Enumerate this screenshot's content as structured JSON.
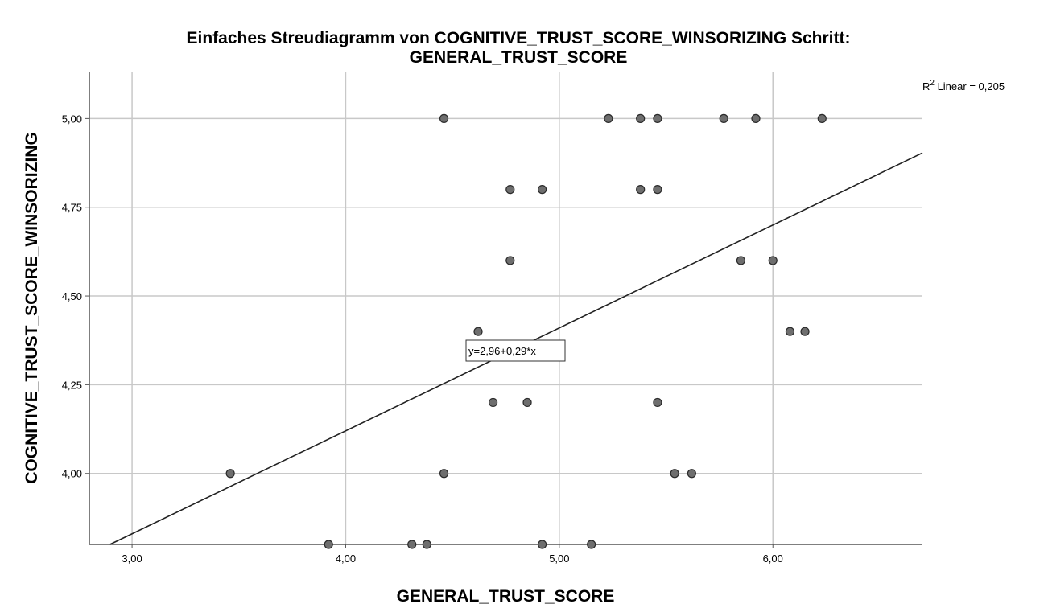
{
  "chart_data": {
    "type": "scatter",
    "title_line1": "Einfaches Streudiagramm  von COGNITIVE_TRUST_SCORE_WINSORIZING Schritt:",
    "title_line2": "GENERAL_TRUST_SCORE",
    "xlabel": "GENERAL_TRUST_SCORE",
    "ylabel": "COGNITIVE_TRUST_SCORE_WINSORIZING",
    "xlim": [
      2.8,
      6.7
    ],
    "ylim": [
      3.8,
      5.13
    ],
    "x_ticks": [
      3.0,
      4.0,
      5.0,
      6.0
    ],
    "x_tick_labels": [
      "3,00",
      "4,00",
      "5,00",
      "6,00"
    ],
    "y_ticks": [
      4.0,
      4.25,
      4.5,
      4.75,
      5.0
    ],
    "y_tick_labels": [
      "4,00",
      "4,25",
      "4,50",
      "4,75",
      "5,00"
    ],
    "grid": true,
    "points": [
      {
        "x": 4.46,
        "y": 5.0
      },
      {
        "x": 5.23,
        "y": 5.0
      },
      {
        "x": 5.38,
        "y": 5.0
      },
      {
        "x": 5.46,
        "y": 5.0
      },
      {
        "x": 5.77,
        "y": 5.0
      },
      {
        "x": 5.92,
        "y": 5.0
      },
      {
        "x": 6.23,
        "y": 5.0
      },
      {
        "x": 4.77,
        "y": 4.8
      },
      {
        "x": 4.92,
        "y": 4.8
      },
      {
        "x": 5.38,
        "y": 4.8
      },
      {
        "x": 5.46,
        "y": 4.8
      },
      {
        "x": 4.77,
        "y": 4.6
      },
      {
        "x": 5.85,
        "y": 4.6
      },
      {
        "x": 6.0,
        "y": 4.6
      },
      {
        "x": 4.62,
        "y": 4.4
      },
      {
        "x": 6.08,
        "y": 4.4
      },
      {
        "x": 6.15,
        "y": 4.4
      },
      {
        "x": 4.69,
        "y": 4.2
      },
      {
        "x": 4.85,
        "y": 4.2
      },
      {
        "x": 5.46,
        "y": 4.2
      },
      {
        "x": 3.46,
        "y": 4.0
      },
      {
        "x": 4.46,
        "y": 4.0
      },
      {
        "x": 5.54,
        "y": 4.0
      },
      {
        "x": 5.62,
        "y": 4.0
      },
      {
        "x": 3.92,
        "y": 3.8
      },
      {
        "x": 4.31,
        "y": 3.8
      },
      {
        "x": 4.38,
        "y": 3.8
      },
      {
        "x": 4.92,
        "y": 3.8
      },
      {
        "x": 5.15,
        "y": 3.8
      }
    ],
    "fit_line": {
      "intercept": 2.96,
      "slope": 0.29
    },
    "fit_label": "y=2,96+0,29*x",
    "r2_label_prefix": "R",
    "r2_label_sup": "2",
    "r2_label_rest": " Linear = 0,205",
    "colors": {
      "point_fill": "#6e6e6e",
      "point_stroke": "#2b2b2b",
      "grid": "#c8c8c8",
      "axis": "#555555",
      "line": "#222222"
    }
  }
}
